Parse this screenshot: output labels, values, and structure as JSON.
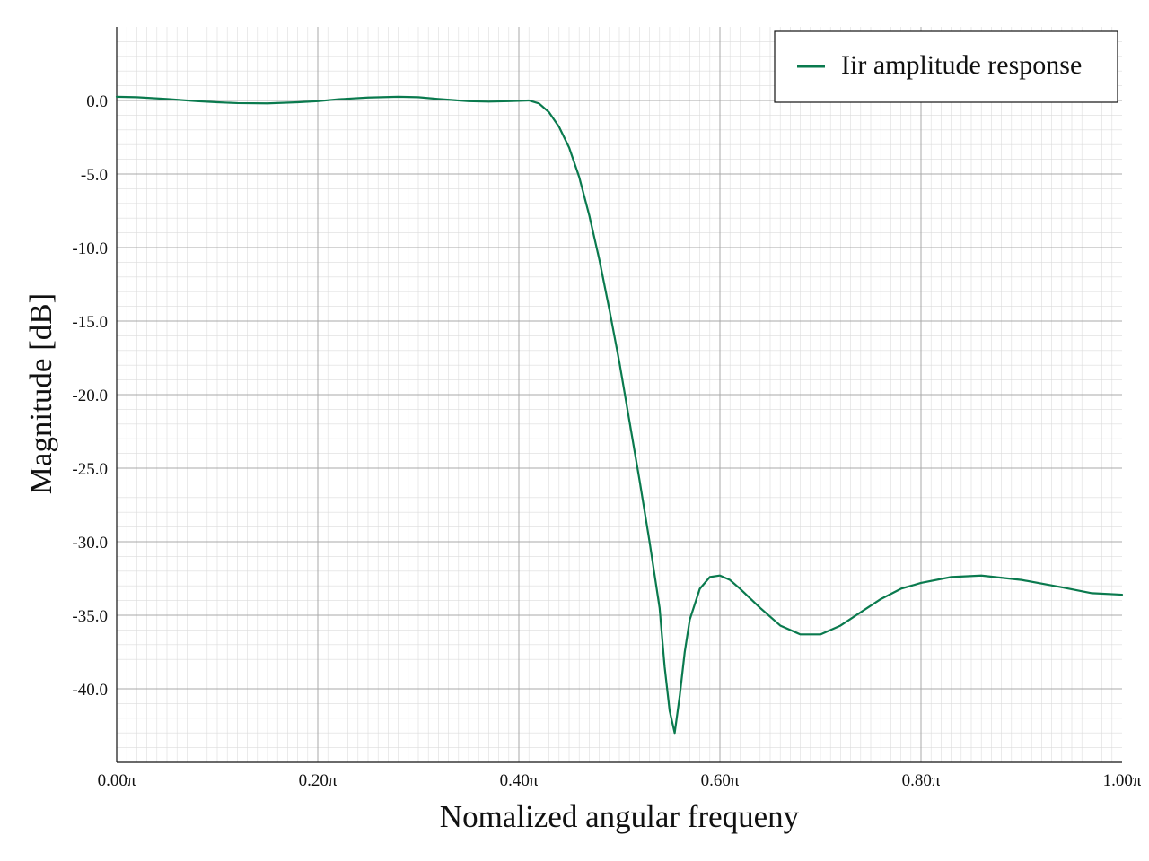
{
  "chart_data": {
    "type": "line",
    "title": "",
    "xlabel": "Nomalized angular frequeny",
    "ylabel": "Magnitude [dB]",
    "xlim": [
      0.0,
      1.0
    ],
    "ylim": [
      -45.0,
      5.0
    ],
    "x_ticks": [
      0.0,
      0.2,
      0.4,
      0.6,
      0.8,
      1.0
    ],
    "x_tick_labels": [
      "0.00π",
      "0.20π",
      "0.40π",
      "0.60π",
      "0.80π",
      "1.00π"
    ],
    "y_ticks": [
      0.0,
      -5.0,
      -10.0,
      -15.0,
      -20.0,
      -25.0,
      -30.0,
      -35.0,
      -40.0
    ],
    "y_tick_labels": [
      "0.0",
      "-5.0",
      "-10.0",
      "-15.0",
      "-20.0",
      "-25.0",
      "-30.0",
      "-35.0",
      "-40.0"
    ],
    "grid": true,
    "minor_grid": true,
    "legend_position": "top-right",
    "series": [
      {
        "name": "Iir amplitude response",
        "color": "#0a7a4e",
        "x": [
          0.0,
          0.02,
          0.05,
          0.08,
          0.1,
          0.12,
          0.15,
          0.18,
          0.2,
          0.22,
          0.25,
          0.28,
          0.3,
          0.32,
          0.35,
          0.37,
          0.39,
          0.41,
          0.42,
          0.43,
          0.44,
          0.45,
          0.46,
          0.47,
          0.48,
          0.49,
          0.5,
          0.51,
          0.52,
          0.53,
          0.54,
          0.545,
          0.55,
          0.555,
          0.56,
          0.565,
          0.57,
          0.58,
          0.59,
          0.6,
          0.61,
          0.62,
          0.64,
          0.66,
          0.68,
          0.7,
          0.72,
          0.74,
          0.76,
          0.78,
          0.8,
          0.83,
          0.86,
          0.9,
          0.94,
          0.97,
          1.0
        ],
        "y": [
          0.25,
          0.22,
          0.1,
          -0.05,
          -0.12,
          -0.18,
          -0.2,
          -0.12,
          -0.05,
          0.08,
          0.2,
          0.25,
          0.22,
          0.1,
          -0.05,
          -0.08,
          -0.05,
          0.0,
          -0.2,
          -0.8,
          -1.8,
          -3.2,
          -5.2,
          -7.8,
          -10.8,
          -14.2,
          -17.8,
          -21.8,
          -25.8,
          -30.0,
          -34.5,
          -38.5,
          -41.5,
          -43.0,
          -40.5,
          -37.5,
          -35.3,
          -33.2,
          -32.4,
          -32.3,
          -32.6,
          -33.2,
          -34.5,
          -35.7,
          -36.3,
          -36.3,
          -35.7,
          -34.8,
          -33.9,
          -33.2,
          -32.8,
          -32.4,
          -32.3,
          -32.6,
          -33.1,
          -33.5,
          -33.6
        ]
      }
    ]
  }
}
